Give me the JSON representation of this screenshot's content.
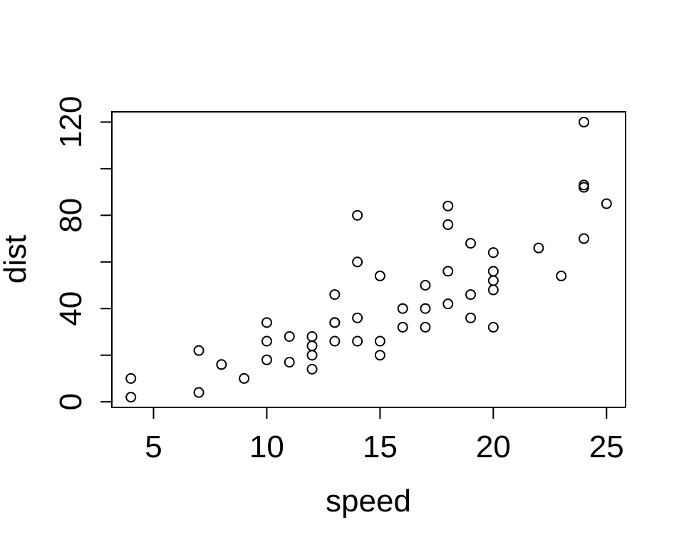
{
  "chart_data": {
    "type": "scatter",
    "title": "",
    "xlabel": "speed",
    "ylabel": "dist",
    "xlim": [
      3.16,
      25.84
    ],
    "ylim": [
      -2.4,
      124.4
    ],
    "x_ticks": [
      5,
      10,
      15,
      20,
      25
    ],
    "y_ticks": [
      0,
      20,
      40,
      60,
      80,
      100,
      120
    ],
    "y_tick_labels": [
      "0",
      "",
      "40",
      "",
      "80",
      "",
      "120"
    ],
    "grid": false,
    "marker": "open-circle",
    "colors": {
      "points": "#000000",
      "axes": "#000000",
      "background": "#ffffff"
    },
    "series": [
      {
        "x": [
          4,
          4,
          7,
          7,
          8,
          9,
          10,
          10,
          10,
          11,
          11,
          12,
          12,
          12,
          12,
          13,
          13,
          13,
          13,
          14,
          14,
          14,
          14,
          15,
          15,
          15,
          16,
          16,
          17,
          17,
          17,
          18,
          18,
          18,
          18,
          19,
          19,
          19,
          20,
          20,
          20,
          20,
          20,
          22,
          23,
          24,
          24,
          24,
          24,
          25
        ],
        "y": [
          2,
          10,
          4,
          22,
          16,
          10,
          18,
          26,
          34,
          17,
          28,
          14,
          20,
          24,
          28,
          26,
          34,
          34,
          46,
          26,
          36,
          60,
          80,
          20,
          26,
          54,
          32,
          40,
          32,
          40,
          50,
          42,
          56,
          76,
          84,
          36,
          46,
          68,
          32,
          48,
          52,
          56,
          64,
          66,
          54,
          70,
          92,
          93,
          120,
          85
        ]
      }
    ]
  }
}
